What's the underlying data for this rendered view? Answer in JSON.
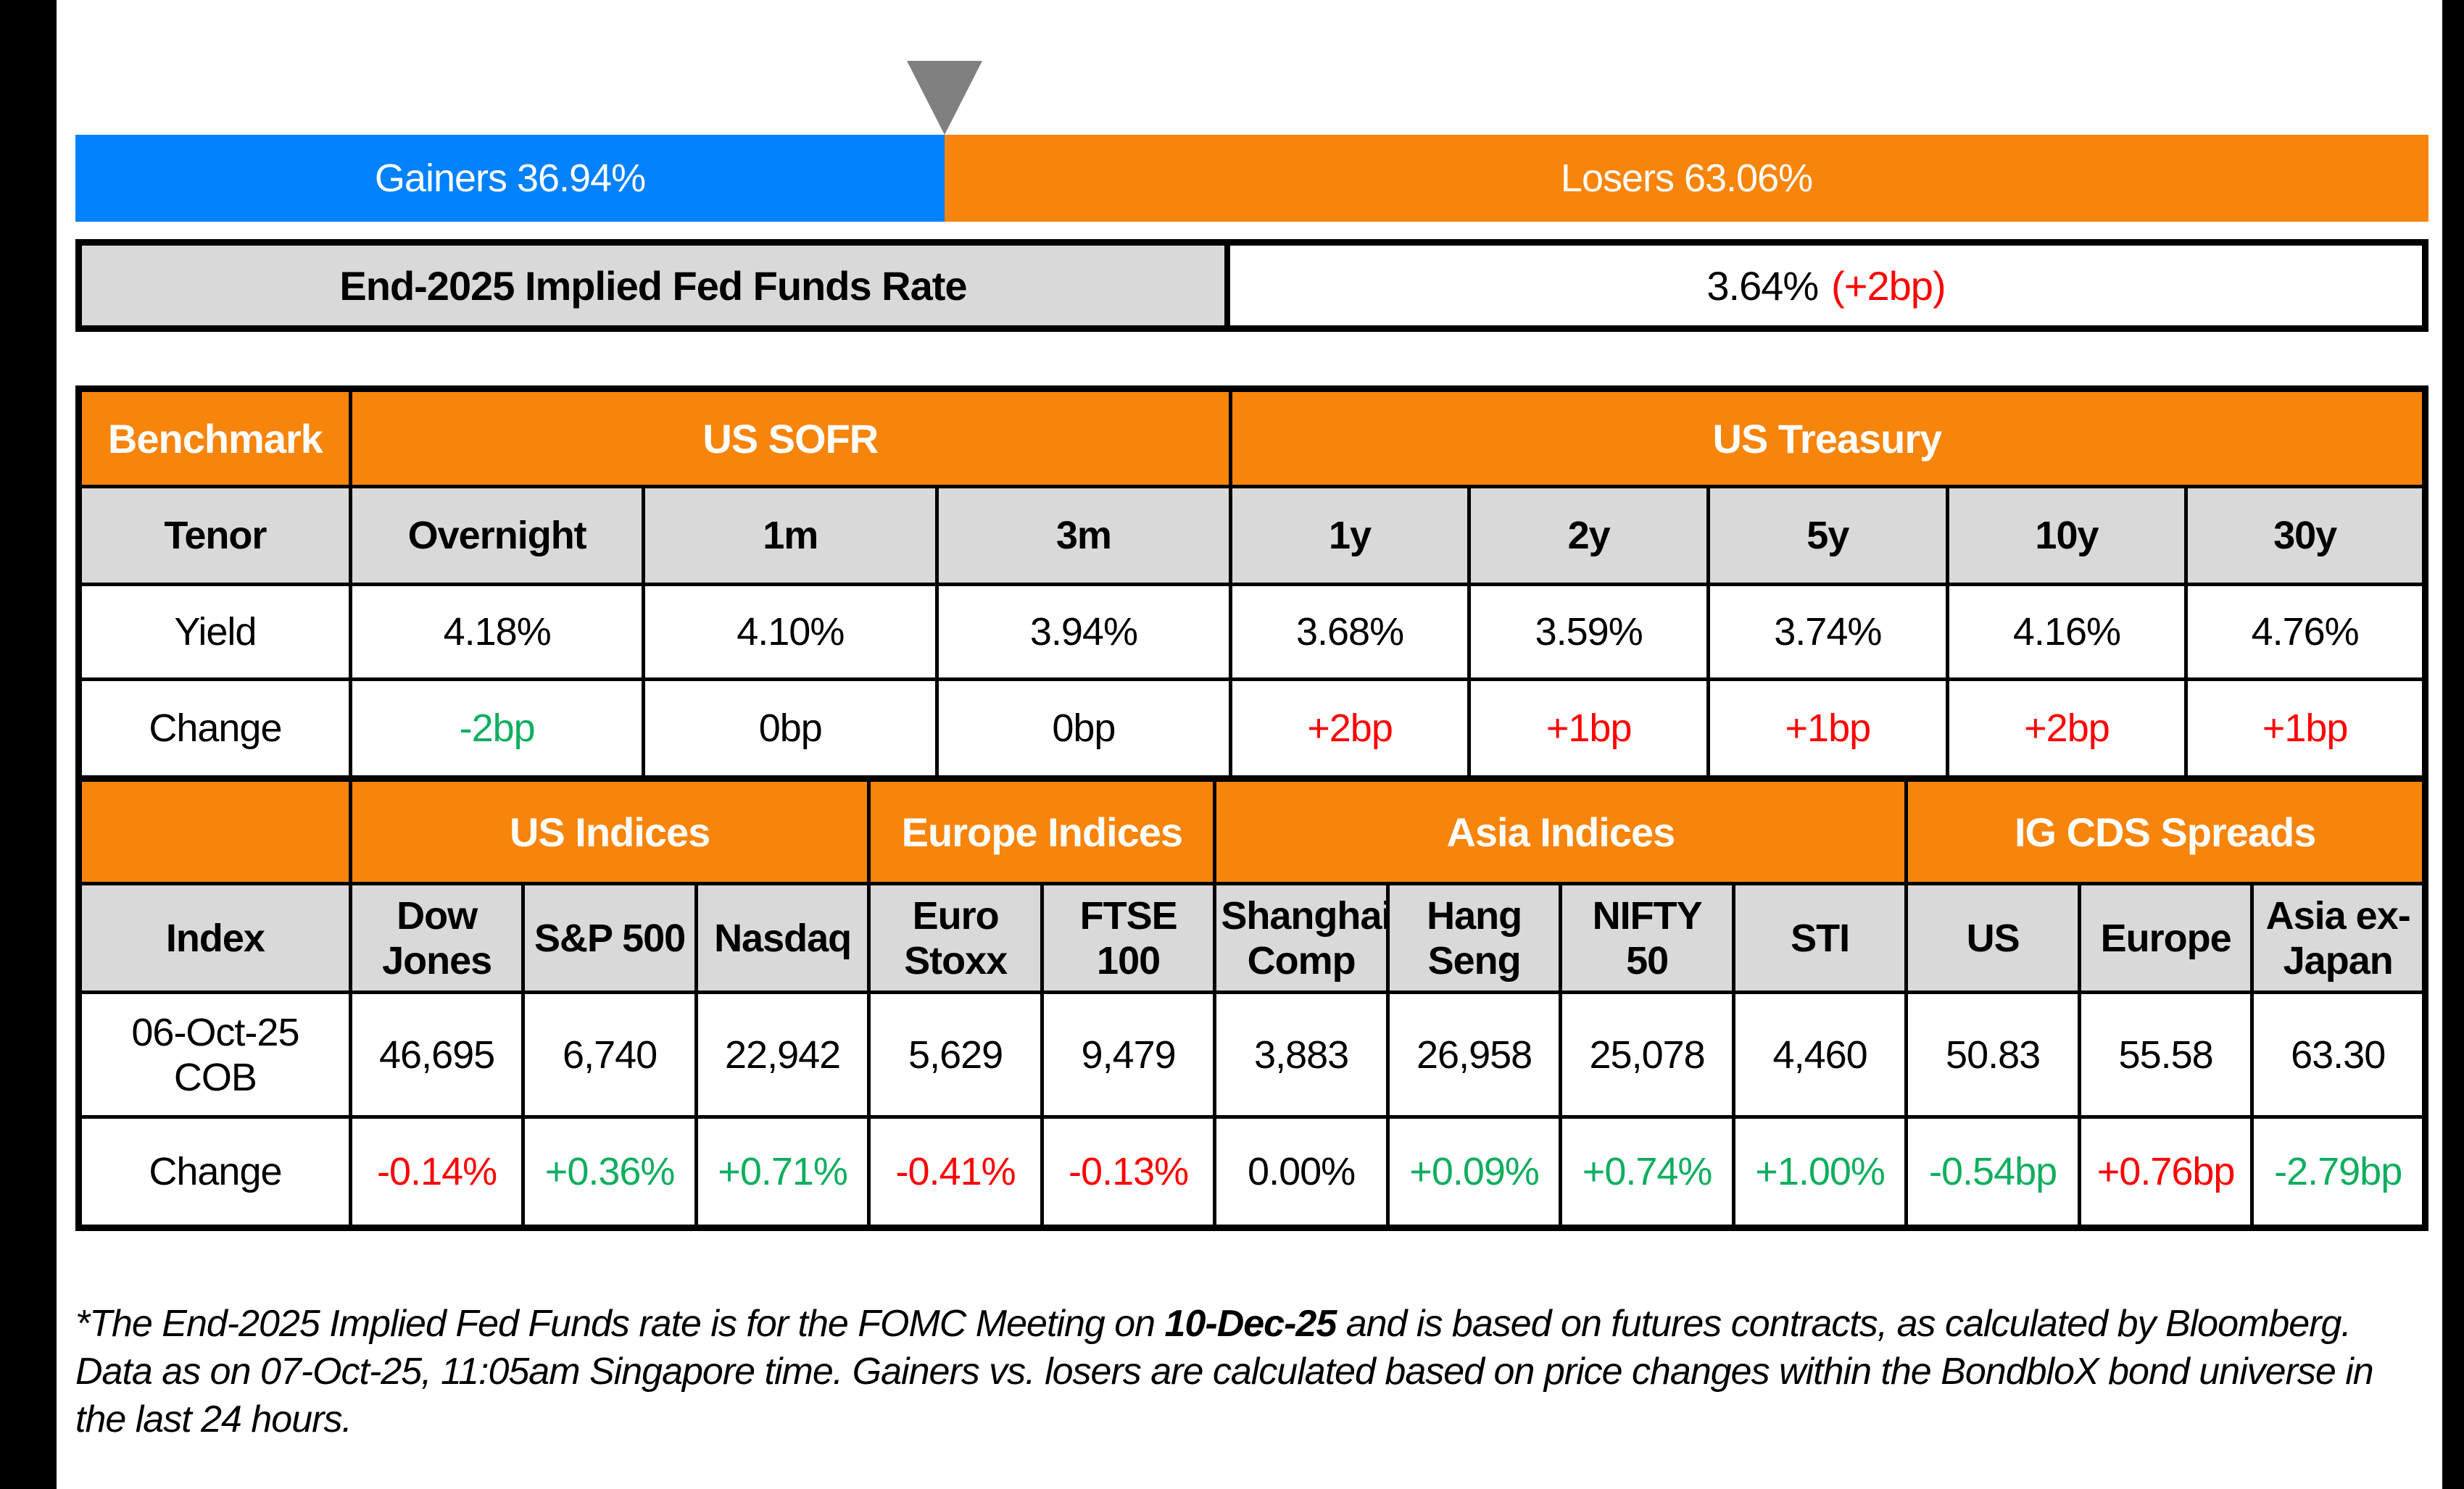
{
  "palette": {
    "blue": "#0181FB",
    "orange": "#F7840B",
    "red": "#FF0000",
    "green": "#0FAE5F",
    "cell-gray": "#D9D9D9",
    "marker-gray": "#808080",
    "band-black": "#000000"
  },
  "gainers_losers": {
    "gainers_label": "Gainers 36.94%",
    "losers_label": "Losers 63.06%",
    "gainers_pct": 36.94,
    "losers_pct": 63.06
  },
  "fed_funds": {
    "label": "End-2025 Implied Fed Funds Rate",
    "value": "3.64%",
    "change": "(+2bp)",
    "change_color": "red"
  },
  "benchmark": {
    "corner": "Benchmark",
    "group_us_sofr": "US SOFR",
    "group_us_treasury": "US Treasury",
    "row_labels": {
      "tenor": "Tenor",
      "yield": "Yield",
      "change": "Change"
    },
    "tenors": [
      "Overnight",
      "1m",
      "3m",
      "1y",
      "2y",
      "5y",
      "10y",
      "30y"
    ],
    "yields": [
      "4.18%",
      "4.10%",
      "3.94%",
      "3.68%",
      "3.59%",
      "3.74%",
      "4.16%",
      "4.76%"
    ],
    "changes": [
      {
        "text": "-2bp",
        "color": "green"
      },
      {
        "text": "0bp",
        "color": "black"
      },
      {
        "text": "0bp",
        "color": "black"
      },
      {
        "text": "+2bp",
        "color": "red"
      },
      {
        "text": "+1bp",
        "color": "red"
      },
      {
        "text": "+1bp",
        "color": "red"
      },
      {
        "text": "+2bp",
        "color": "red"
      },
      {
        "text": "+1bp",
        "color": "red"
      }
    ]
  },
  "indices": {
    "groups": {
      "us": "US Indices",
      "europe": "Europe Indices",
      "asia": "Asia Indices",
      "cds": "IG CDS Spreads"
    },
    "row_labels": {
      "index": "Index",
      "date": "06-Oct-25 COB",
      "change": "Change"
    },
    "names": [
      "Dow Jones",
      "S&P 500",
      "Nasdaq",
      "Euro Stoxx",
      "FTSE 100",
      "Shanghai Comp",
      "Hang Seng",
      "NIFTY 50",
      "STI",
      "US",
      "Europe",
      "Asia ex-Japan"
    ],
    "values": [
      "46,695",
      "6,740",
      "22,942",
      "5,629",
      "9,479",
      "3,883",
      "26,958",
      "25,078",
      "4,460",
      "50.83",
      "55.58",
      "63.30"
    ],
    "changes": [
      {
        "text": "-0.14%",
        "color": "red"
      },
      {
        "text": "+0.36%",
        "color": "green"
      },
      {
        "text": "+0.71%",
        "color": "green"
      },
      {
        "text": "-0.41%",
        "color": "red"
      },
      {
        "text": "-0.13%",
        "color": "red"
      },
      {
        "text": "0.00%",
        "color": "black"
      },
      {
        "text": "+0.09%",
        "color": "green"
      },
      {
        "text": "+0.74%",
        "color": "green"
      },
      {
        "text": "+1.00%",
        "color": "green"
      },
      {
        "text": "-0.54bp",
        "color": "green"
      },
      {
        "text": "+0.76bp",
        "color": "red"
      },
      {
        "text": "-2.79bp",
        "color": "green"
      }
    ]
  },
  "footnote": {
    "part1": "*The End-2025 Implied Fed Funds rate is for the FOMC Meeting on",
    "bold": "10-Dec-25",
    "part2": "and is based on futures contracts, as calculated by Bloomberg. Data as on 07-Oct-25, 11:05am Singapore time. Gainers vs. losers are calculated based on price changes within the BondbloX bond universe in the last 24 hours."
  },
  "chart_data": [
    {
      "type": "bar",
      "subtype": "horizontal-stacked-100pct",
      "title": "Gainers vs Losers",
      "series": [
        {
          "name": "Gainers",
          "value": 36.94,
          "color": "#0181FB"
        },
        {
          "name": "Losers",
          "value": 63.06,
          "color": "#F7840B"
        }
      ],
      "units": "percent",
      "annotations": [
        "gray down-triangle marker at the Gainers/Losers boundary (36.94%)"
      ]
    },
    {
      "type": "table",
      "title": "Benchmark yields",
      "column_groups": [
        {
          "label": "US SOFR",
          "span": 3
        },
        {
          "label": "US Treasury",
          "span": 5
        }
      ],
      "columns": [
        "Overnight",
        "1m",
        "3m",
        "1y",
        "2y",
        "5y",
        "10y",
        "30y"
      ],
      "rows": [
        {
          "label": "Yield",
          "values": [
            "4.18%",
            "4.10%",
            "3.94%",
            "3.68%",
            "3.59%",
            "3.74%",
            "4.16%",
            "4.76%"
          ]
        },
        {
          "label": "Change",
          "values": [
            "-2bp",
            "0bp",
            "0bp",
            "+2bp",
            "+1bp",
            "+1bp",
            "+2bp",
            "+1bp"
          ]
        }
      ]
    },
    {
      "type": "table",
      "title": "Indices and IG CDS spreads",
      "column_groups": [
        {
          "label": "US Indices",
          "span": 3
        },
        {
          "label": "Europe Indices",
          "span": 2
        },
        {
          "label": "Asia Indices",
          "span": 4
        },
        {
          "label": "IG CDS Spreads",
          "span": 3
        }
      ],
      "columns": [
        "Dow Jones",
        "S&P 500",
        "Nasdaq",
        "Euro Stoxx",
        "FTSE 100",
        "Shanghai Comp",
        "Hang Seng",
        "NIFTY 50",
        "STI",
        "US",
        "Europe",
        "Asia ex-Japan"
      ],
      "rows": [
        {
          "label": "06-Oct-25 COB",
          "values": [
            46695,
            6740,
            22942,
            5629,
            9479,
            3883,
            26958,
            25078,
            4460,
            50.83,
            55.58,
            63.3
          ]
        },
        {
          "label": "Change",
          "values": [
            "-0.14%",
            "+0.36%",
            "+0.71%",
            "-0.41%",
            "-0.13%",
            "0.00%",
            "+0.09%",
            "+0.74%",
            "+1.00%",
            "-0.54bp",
            "+0.76bp",
            "-2.79bp"
          ]
        }
      ]
    }
  ]
}
